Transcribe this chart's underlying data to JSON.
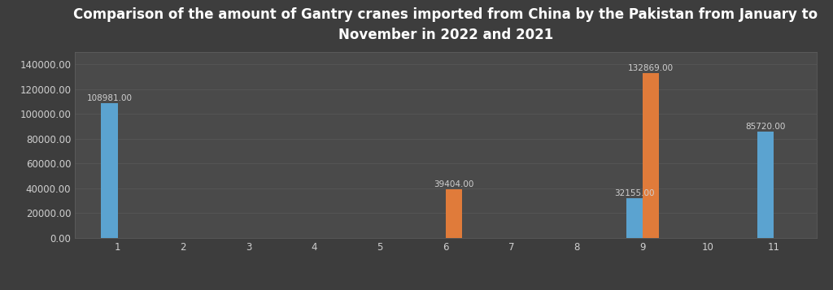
{
  "title": "Comparison of the amount of Gantry cranes imported from China by the Pakistan from January to\nNovember in 2022 and 2021",
  "months": [
    1,
    2,
    3,
    4,
    5,
    6,
    7,
    8,
    9,
    10,
    11
  ],
  "data_2021": [
    108981.0,
    0,
    0,
    0,
    0,
    0,
    0,
    0,
    32155.0,
    0,
    85720.0
  ],
  "data_2022": [
    0,
    0,
    0,
    0,
    0,
    39404.0,
    0,
    0,
    132869.0,
    0,
    0
  ],
  "color_2021": "#5ba3d0",
  "color_2022": "#e07b3a",
  "fig_bg": "#3d3d3d",
  "ax_bg": "#4a4a4a",
  "text_color": "#d0d0d0",
  "grid_color": "#606060",
  "bar_width": 0.25,
  "ylim": [
    0,
    150000
  ],
  "yticks": [
    0,
    20000,
    40000,
    60000,
    80000,
    100000,
    120000,
    140000
  ],
  "title_fontsize": 12,
  "tick_fontsize": 8.5,
  "legend_fontsize": 8,
  "label_fontsize": 7.5
}
